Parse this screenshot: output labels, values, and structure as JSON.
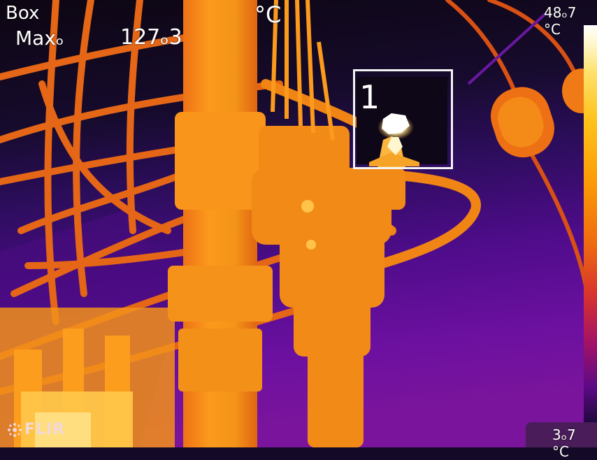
{
  "overlay": {
    "box_label": "Box",
    "max_label": "Maxₒ",
    "max_value": "127ₒ3",
    "unit": "°C"
  },
  "scale": {
    "max_text": "48ₒ7 °C",
    "min_text": "3ₒ7 °C"
  },
  "roi": {
    "number": "1"
  },
  "logo": {
    "text": "FLIR",
    "icon": "flir-dots-icon"
  },
  "palette": {
    "background": "#140a28",
    "cold": "#2a0a46",
    "mid": "#8a1878",
    "warm": "#e3651a",
    "hot": "#f7981c",
    "hotter": "#ffc74d",
    "hottest": "#ffffff"
  }
}
